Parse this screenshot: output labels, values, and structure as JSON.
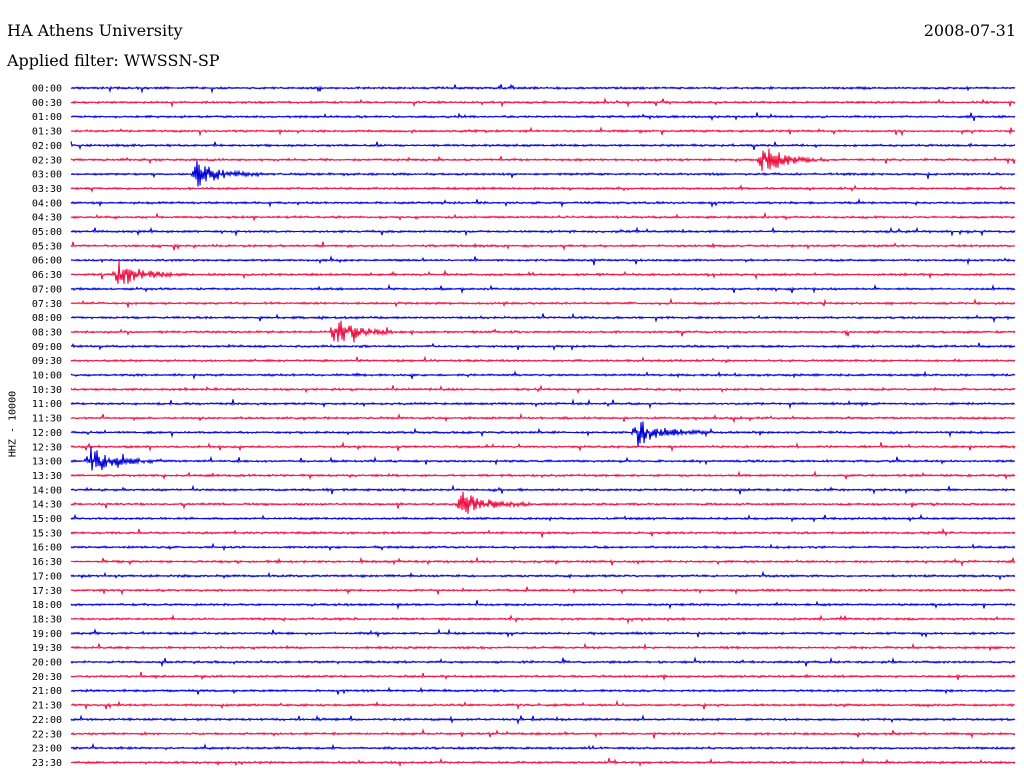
{
  "header": {
    "station": "HA Athens University",
    "date": "2008-07-31",
    "filter": "Applied filter: WWSSN-SP"
  },
  "chart_data": {
    "type": "line",
    "title": "HA Athens University",
    "subtitle": "Applied filter: WWSSN-SP",
    "ylabel": "HHZ - 10000",
    "colors": [
      "#0000dd",
      "#ee1144"
    ],
    "rows": [
      "00:00",
      "00:30",
      "01:00",
      "01:30",
      "02:00",
      "02:30",
      "03:00",
      "03:30",
      "04:00",
      "04:30",
      "05:00",
      "05:30",
      "06:00",
      "06:30",
      "07:00",
      "07:30",
      "08:00",
      "08:30",
      "09:00",
      "09:30",
      "10:00",
      "10:30",
      "11:00",
      "11:30",
      "12:00",
      "12:30",
      "13:00",
      "13:30",
      "14:00",
      "14:30",
      "15:00",
      "15:30",
      "16:00",
      "16:30",
      "17:00",
      "17:30",
      "18:00",
      "18:30",
      "19:00",
      "19:30",
      "20:00",
      "20:30",
      "21:00",
      "21:30",
      "22:00",
      "22:30",
      "23:00",
      "23:30"
    ],
    "events": [
      {
        "row": 6,
        "minute": 4.0
      },
      {
        "row": 5,
        "minute": 22.0
      },
      {
        "row": 17,
        "minute": 8.4
      },
      {
        "row": 24,
        "minute": 18.0
      },
      {
        "row": 29,
        "minute": 12.4
      },
      {
        "row": 13,
        "minute": 1.5
      },
      {
        "row": 26,
        "minute": 0.6
      }
    ]
  }
}
